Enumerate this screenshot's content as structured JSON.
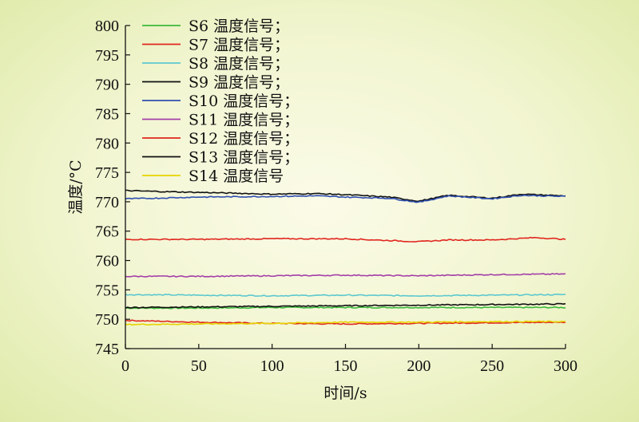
{
  "chart_data": {
    "type": "line",
    "xlabel": "时间/s",
    "ylabel": "温度/°C",
    "xlim": [
      0,
      300
    ],
    "ylim": [
      745,
      800
    ],
    "x_ticks": [
      "0",
      "50",
      "100",
      "150",
      "200",
      "250",
      "300"
    ],
    "y_ticks": [
      "745",
      "750",
      "755",
      "760",
      "765",
      "770",
      "775",
      "780",
      "785",
      "790",
      "795",
      "800"
    ],
    "grid": false,
    "legend_position": "top-left",
    "series": [
      {
        "name": "S6 温度信号；",
        "color": "#3cb93c",
        "x": [
          0,
          50,
          100,
          150,
          200,
          250,
          300
        ],
        "y": [
          751.9,
          751.9,
          752.0,
          752.0,
          752.0,
          752.0,
          752.0
        ]
      },
      {
        "name": "S7 温度信号；",
        "color": "#e0261e",
        "x": [
          0,
          50,
          100,
          150,
          200,
          250,
          300
        ],
        "y": [
          749.8,
          749.5,
          749.3,
          749.2,
          749.3,
          749.4,
          749.5
        ]
      },
      {
        "name": "S8 温度信号；",
        "color": "#5cc8cf",
        "x": [
          0,
          50,
          100,
          150,
          200,
          250,
          300
        ],
        "y": [
          754.2,
          754.1,
          754.0,
          754.1,
          754.0,
          754.1,
          754.2
        ]
      },
      {
        "name": "S9 温度信号；",
        "color": "#111111",
        "x": [
          0,
          50,
          100,
          150,
          200,
          250,
          300
        ],
        "y": [
          752.0,
          752.1,
          752.2,
          752.3,
          752.4,
          752.5,
          752.6
        ]
      },
      {
        "name": "S10 温度信号；",
        "color": "#2f4fb0",
        "x": [
          0,
          20,
          50,
          100,
          130,
          150,
          180,
          200,
          220,
          250,
          270,
          300
        ],
        "y": [
          770.5,
          770.6,
          770.8,
          770.9,
          771.0,
          770.8,
          770.6,
          769.9,
          771.0,
          770.5,
          771.1,
          770.9
        ]
      },
      {
        "name": "S11 温度信号；",
        "color": "#a43fa8",
        "x": [
          0,
          50,
          100,
          150,
          200,
          250,
          300
        ],
        "y": [
          757.3,
          757.3,
          757.4,
          757.5,
          757.4,
          757.6,
          757.7
        ]
      },
      {
        "name": "S12 温度信号；",
        "color": "#e0261e",
        "x": [
          0,
          50,
          100,
          150,
          200,
          220,
          250,
          280,
          300
        ],
        "y": [
          763.6,
          763.6,
          763.7,
          763.7,
          763.2,
          763.5,
          763.5,
          763.9,
          763.6
        ]
      },
      {
        "name": "S13 温度信号；",
        "color": "#111111",
        "x": [
          0,
          30,
          50,
          100,
          130,
          150,
          180,
          200,
          220,
          250,
          270,
          300
        ],
        "y": [
          771.9,
          771.7,
          771.6,
          771.3,
          771.4,
          771.2,
          770.8,
          770.1,
          771.1,
          770.6,
          771.3,
          771.0
        ]
      },
      {
        "name": "S14 温度信号",
        "color": "#e6d400",
        "x": [
          0,
          50,
          100,
          150,
          200,
          250,
          300
        ],
        "y": [
          749.1,
          749.2,
          749.3,
          749.5,
          749.5,
          749.6,
          749.6
        ]
      }
    ]
  }
}
